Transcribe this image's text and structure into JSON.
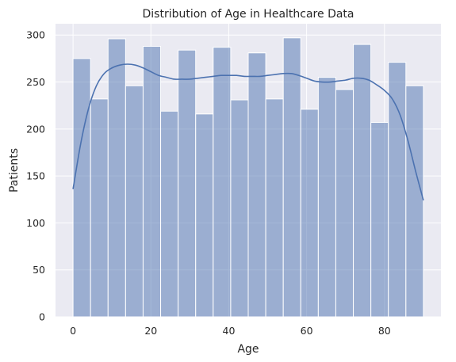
{
  "chart_data": {
    "type": "bar",
    "subtype": "histogram",
    "title": "Distribution of Age in Healthcare Data",
    "xlabel": "Age",
    "ylabel": "Patients",
    "xlim": [
      -4.5,
      94.5
    ],
    "ylim": [
      0,
      312
    ],
    "xticks": [
      0,
      20,
      40,
      60,
      80
    ],
    "yticks": [
      0,
      50,
      100,
      150,
      200,
      250,
      300
    ],
    "grid": true,
    "background_color": "#eaeaf2",
    "bar_color": "#4c72b0",
    "bar_opacity": 0.5,
    "line_color": "#4c72b0",
    "bin_edges": [
      0,
      4.5,
      9,
      13.5,
      18,
      22.5,
      27,
      31.5,
      36,
      40.5,
      45,
      49.5,
      54,
      58.5,
      63,
      67.5,
      72,
      76.5,
      81,
      85.5,
      90
    ],
    "values": [
      275,
      232,
      296,
      246,
      288,
      219,
      284,
      216,
      287,
      231,
      281,
      232,
      297,
      221,
      255,
      242,
      290,
      207,
      271,
      246
    ],
    "kde": {
      "x": [
        0,
        2,
        4,
        6,
        8,
        10,
        12,
        14,
        16,
        18,
        20,
        22,
        24,
        26,
        28,
        30,
        32,
        34,
        36,
        38,
        40,
        42,
        44,
        46,
        48,
        50,
        52,
        54,
        56,
        58,
        60,
        62,
        64,
        66,
        68,
        70,
        72,
        74,
        76,
        78,
        80,
        82,
        84,
        86,
        88,
        90
      ],
      "y": [
        136,
        185,
        222,
        246,
        259,
        265,
        268,
        269,
        268,
        265,
        261,
        257,
        255,
        253,
        253,
        253,
        254,
        255,
        256,
        257,
        257,
        257,
        256,
        256,
        256,
        257,
        258,
        259,
        259,
        257,
        254,
        251,
        250,
        250,
        251,
        252,
        254,
        254,
        252,
        247,
        241,
        232,
        215,
        188,
        155,
        124
      ]
    }
  }
}
